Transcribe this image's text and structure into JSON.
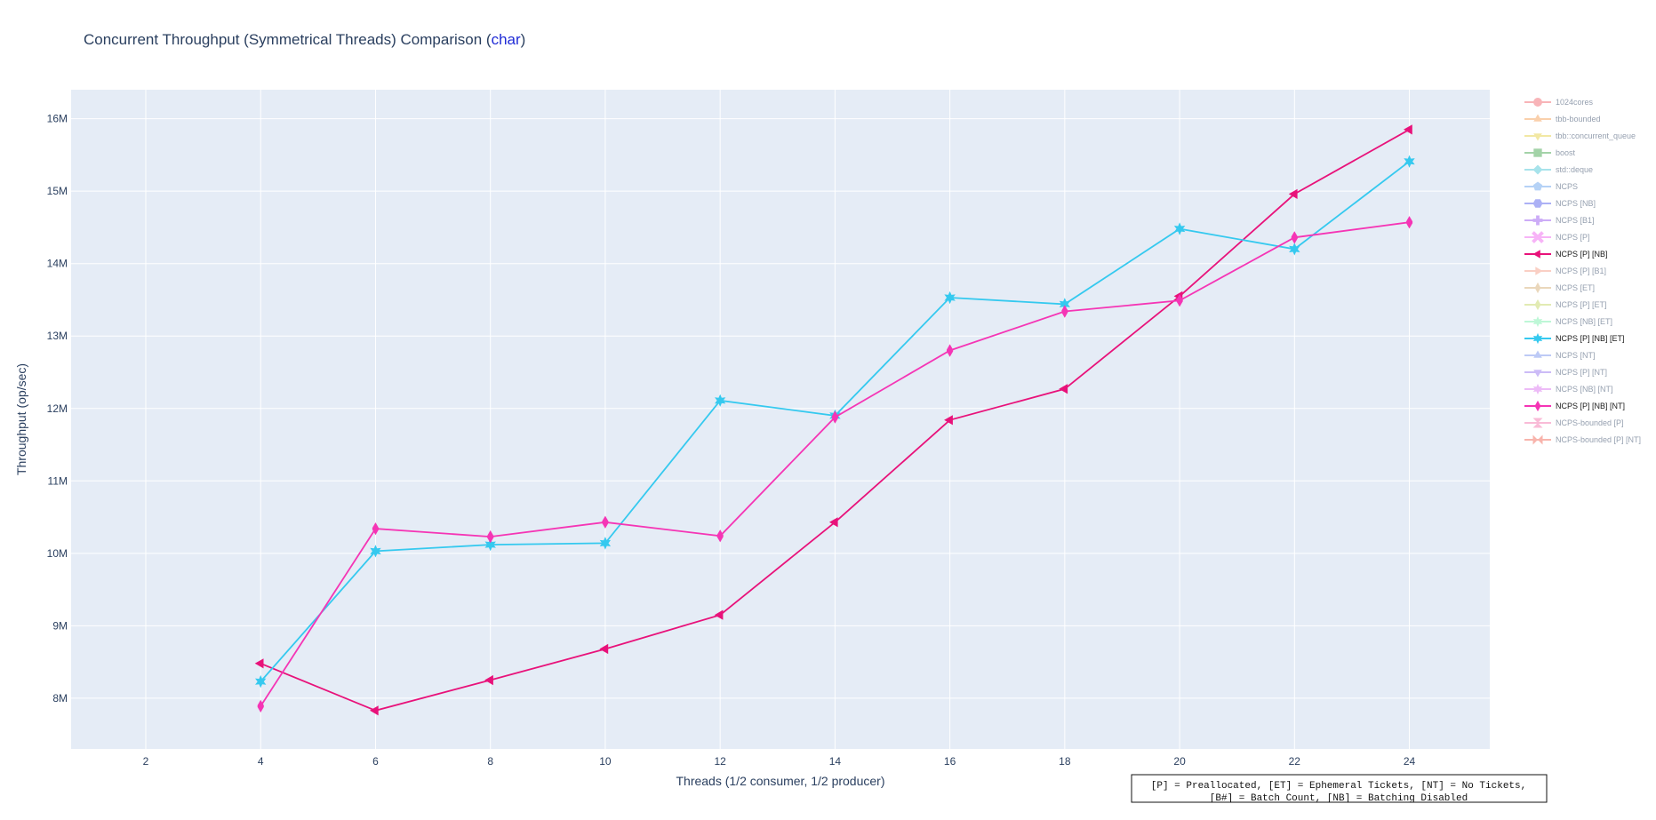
{
  "chart_data": {
    "type": "line",
    "title_prefix": "Concurrent Throughput (Symmetrical Threads) Comparison (",
    "title_accent": "char",
    "title_suffix": ")",
    "xlabel": "Threads (1/2 consumer, 1/2 producer)",
    "ylabel": "Throughput (op/sec)",
    "xlim": [
      0.7,
      25.4
    ],
    "ylim": [
      7300000,
      16400000
    ],
    "x_ticks": [
      2,
      4,
      6,
      8,
      10,
      12,
      14,
      16,
      18,
      20,
      22,
      24
    ],
    "y_ticks": [
      8000000,
      9000000,
      10000000,
      11000000,
      12000000,
      13000000,
      14000000,
      15000000,
      16000000
    ],
    "y_tick_labels": [
      "8M",
      "9M",
      "10M",
      "11M",
      "12M",
      "13M",
      "14M",
      "15M",
      "16M"
    ],
    "grid": true,
    "legend_position": "right",
    "series": [
      {
        "name": "NCPS [P] [NB]",
        "color": "#e8127a",
        "marker": "triangle-left",
        "x": [
          4,
          6,
          8,
          10,
          12,
          14,
          16,
          18,
          20,
          22,
          24
        ],
        "y": [
          8480000,
          7830000,
          8250000,
          8680000,
          9150000,
          10430000,
          11840000,
          12270000,
          13550000,
          14960000,
          15850000
        ]
      },
      {
        "name": "NCPS [P] [NB] [ET]",
        "color": "#35c9ef",
        "marker": "star",
        "x": [
          4,
          6,
          8,
          10,
          12,
          14,
          16,
          18,
          20,
          22,
          24
        ],
        "y": [
          8230000,
          10030000,
          10120000,
          10140000,
          12110000,
          11900000,
          13530000,
          13440000,
          14480000,
          14200000,
          15410000
        ]
      },
      {
        "name": "NCPS [P] [NB] [NT]",
        "color": "#f535b5",
        "marker": "diamond-wide",
        "x": [
          4,
          6,
          8,
          10,
          12,
          14,
          16,
          18,
          20,
          22,
          24
        ],
        "y": [
          7890000,
          10340000,
          10230000,
          10430000,
          10240000,
          11880000,
          12800000,
          13340000,
          13490000,
          14360000,
          14570000
        ]
      }
    ],
    "legend": [
      {
        "label": "1024cores",
        "color": "#f26b73",
        "marker": "circle",
        "active": false
      },
      {
        "label": "tbb-bounded",
        "color": "#f7a25c",
        "marker": "triangle-up",
        "active": false
      },
      {
        "label": "tbb::concurrent_queue",
        "color": "#e6d24c",
        "marker": "triangle-down",
        "active": false
      },
      {
        "label": "boost",
        "color": "#4aa854",
        "marker": "square",
        "active": false
      },
      {
        "label": "std::deque",
        "color": "#52c8d8",
        "marker": "diamond",
        "active": false
      },
      {
        "label": "NCPS",
        "color": "#6da7ef",
        "marker": "pentagon",
        "active": false
      },
      {
        "label": "NCPS [NB]",
        "color": "#5b65ec",
        "marker": "hexagon",
        "active": false
      },
      {
        "label": "NCPS [B1]",
        "color": "#9a5cf0",
        "marker": "cross",
        "active": false
      },
      {
        "label": "NCPS [P]",
        "color": "#f06bf0",
        "marker": "x",
        "active": false
      },
      {
        "label": "NCPS [P] [NB]",
        "color": "#e8127a",
        "marker": "triangle-left",
        "active": true
      },
      {
        "label": "NCPS [P] [B1]",
        "color": "#f7a08a",
        "marker": "triangle-right",
        "active": false
      },
      {
        "label": "NCPS [ET]",
        "color": "#d6b07a",
        "marker": "diamond-tall",
        "active": false
      },
      {
        "label": "NCPS [P] [ET]",
        "color": "#c6d96a",
        "marker": "diamond-wide",
        "active": false
      },
      {
        "label": "NCPS [NB] [ET]",
        "color": "#7ff0b0",
        "marker": "star",
        "active": false
      },
      {
        "label": "NCPS [P] [NB] [ET]",
        "color": "#35c9ef",
        "marker": "star",
        "active": true
      },
      {
        "label": "NCPS [NT]",
        "color": "#7d97ef",
        "marker": "triangle-up",
        "active": false
      },
      {
        "label": "NCPS [P] [NT]",
        "color": "#9a7cf0",
        "marker": "triangle-down",
        "active": false
      },
      {
        "label": "NCPS [NB] [NT]",
        "color": "#dc7af0",
        "marker": "star",
        "active": false
      },
      {
        "label": "NCPS [P] [NB] [NT]",
        "color": "#f535b5",
        "marker": "diamond-wide",
        "active": true
      },
      {
        "label": "NCPS-bounded [P]",
        "color": "#f57ab0",
        "marker": "hourglass",
        "active": false
      },
      {
        "label": "NCPS-bounded [P] [NT]",
        "color": "#f26b5c",
        "marker": "bowtie",
        "active": false
      }
    ],
    "annotation": [
      "[P] = Preallocated, [ET] = Ephemeral Tickets, [NT] = No Tickets,",
      "[B#] = Batch Count, [NB] = Batching Disabled"
    ]
  }
}
